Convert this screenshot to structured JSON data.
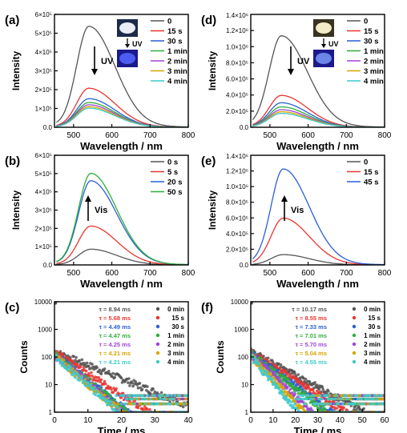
{
  "chart_data": [
    {
      "id": "a",
      "panel_label": "(a)",
      "type": "line",
      "xlabel": "Wavelength / nm",
      "ylabel": "Intensity",
      "xlim": [
        450,
        800
      ],
      "ylim": [
        0,
        600000
      ],
      "ymax_label": "",
      "xticks": [
        500,
        600,
        700,
        800
      ],
      "yticks": [
        [
          0,
          "0.0"
        ],
        [
          100000,
          "1×10⁵"
        ],
        [
          200000,
          "2×10⁵"
        ],
        [
          300000,
          "3×10⁵"
        ],
        [
          400000,
          "4×10⁵"
        ],
        [
          500000,
          "5×10⁵"
        ],
        [
          600000,
          "6×10⁵"
        ]
      ],
      "annotation": "UV",
      "arrow": "down",
      "inset": true,
      "legend": "top-right",
      "peak_x": 540,
      "series": [
        {
          "name": "0",
          "color": "#555555",
          "peak": 530000
        },
        {
          "name": "15 s",
          "color": "#e8352f",
          "peak": 205000
        },
        {
          "name": "30 s",
          "color": "#2a5fd6",
          "peak": 150000
        },
        {
          "name": "1 min",
          "color": "#2fad3b",
          "peak": 130000
        },
        {
          "name": "2 min",
          "color": "#a044d6",
          "peak": 118000
        },
        {
          "name": "3 min",
          "color": "#d8a400",
          "peak": 108000
        },
        {
          "name": "4 min",
          "color": "#3ec9c9",
          "peak": 100000
        }
      ]
    },
    {
      "id": "d",
      "panel_label": "(d)",
      "type": "line",
      "xlabel": "Wavelength / nm",
      "ylabel": "Intensity",
      "xlim": [
        450,
        800
      ],
      "ylim": [
        0,
        1400000
      ],
      "ymax_label": "1.4×10⁶",
      "xticks": [
        500,
        600,
        700,
        800
      ],
      "yticks": [
        [
          0,
          "0.0"
        ],
        [
          200000,
          "2.0×10⁵"
        ],
        [
          400000,
          "4.0×10⁵"
        ],
        [
          600000,
          "6.0×10⁵"
        ],
        [
          800000,
          "8.0×10⁵"
        ],
        [
          1000000,
          "1.0×10⁶"
        ],
        [
          1200000,
          "1.2×10⁶"
        ]
      ],
      "annotation": "UV",
      "arrow": "down",
      "inset": true,
      "legend": "top-right",
      "peak_x": 530,
      "series": [
        {
          "name": "0",
          "color": "#555555",
          "peak": 1120000
        },
        {
          "name": "15 s",
          "color": "#e8352f",
          "peak": 390000
        },
        {
          "name": "30 s",
          "color": "#2a5fd6",
          "peak": 300000
        },
        {
          "name": "1 min",
          "color": "#2fad3b",
          "peak": 250000
        },
        {
          "name": "2 min",
          "color": "#a044d6",
          "peak": 215000
        },
        {
          "name": "3 min",
          "color": "#d8a400",
          "peak": 190000
        },
        {
          "name": "4 min",
          "color": "#3ec9c9",
          "peak": 170000
        }
      ]
    },
    {
      "id": "b",
      "panel_label": "(b)",
      "type": "line",
      "xlabel": "Wavelength / nm",
      "ylabel": "Intensity",
      "xlim": [
        450,
        800
      ],
      "ylim": [
        0,
        600000
      ],
      "ymax_label": "",
      "xticks": [
        500,
        600,
        700,
        800
      ],
      "yticks": [
        [
          0,
          "0.0"
        ],
        [
          100000,
          "1×10⁵"
        ],
        [
          200000,
          "2×10⁵"
        ],
        [
          300000,
          "3×10⁵"
        ],
        [
          400000,
          "4×10⁵"
        ],
        [
          500000,
          "5×10⁵"
        ],
        [
          600000,
          "6×10⁵"
        ]
      ],
      "annotation": "Vis",
      "arrow": "up",
      "inset": false,
      "legend": "top-right",
      "peak_x": 545,
      "series": [
        {
          "name": "0 s",
          "color": "#555555",
          "peak": 85000
        },
        {
          "name": "5 s",
          "color": "#e8352f",
          "peak": 210000
        },
        {
          "name": "20 s",
          "color": "#2a5fd6",
          "peak": 455000
        },
        {
          "name": "50 s",
          "color": "#2fad3b",
          "peak": 495000
        }
      ]
    },
    {
      "id": "e",
      "panel_label": "(e)",
      "type": "line",
      "xlabel": "Wavelength / nm",
      "ylabel": "Intensity",
      "xlim": [
        450,
        800
      ],
      "ylim": [
        0,
        1400000
      ],
      "ymax_label": "1.4×10⁶",
      "xticks": [
        500,
        600,
        700,
        800
      ],
      "yticks": [
        [
          0,
          "0.0"
        ],
        [
          200000,
          "2.0×10⁵"
        ],
        [
          400000,
          "4.0×10⁵"
        ],
        [
          600000,
          "6.0×10⁵"
        ],
        [
          800000,
          "8.0×10⁵"
        ],
        [
          1000000,
          "1.0×10⁶"
        ],
        [
          1200000,
          "1.2×10⁶"
        ]
      ],
      "annotation": "Vis",
      "arrow": "up",
      "inset": false,
      "legend": "top-right",
      "peak_x": 535,
      "series": [
        {
          "name": "0",
          "color": "#555555",
          "peak": 130000
        },
        {
          "name": "15 s",
          "color": "#e8352f",
          "peak": 590000
        },
        {
          "name": "45 s",
          "color": "#2a5fd6",
          "peak": 1210000
        }
      ]
    },
    {
      "id": "c",
      "panel_label": "(c)",
      "type": "scatter",
      "xlabel": "Time / ms",
      "ylabel": "Counts",
      "xlim": [
        0,
        40
      ],
      "ylim": [
        1,
        10000
      ],
      "log_y": true,
      "xticks": [
        0,
        10,
        20,
        30,
        40
      ],
      "yticks": [
        [
          1,
          "1"
        ],
        [
          10,
          "10"
        ],
        [
          100,
          "100"
        ],
        [
          1000,
          "1000"
        ],
        [
          10000,
          "10000"
        ]
      ],
      "legend": "top-right",
      "series": [
        {
          "name": "0 min",
          "tau": "τ = 8.94 ms",
          "tau_ms": 8.94,
          "color": "#555555"
        },
        {
          "name": "15 s",
          "tau": "τ = 5.68 ms",
          "tau_ms": 5.68,
          "color": "#e8352f"
        },
        {
          "name": "30 s",
          "tau": "τ = 4.49 ms",
          "tau_ms": 4.49,
          "color": "#2a5fd6"
        },
        {
          "name": "1 min",
          "tau": "τ = 4.47 ms",
          "tau_ms": 4.47,
          "color": "#2fad3b"
        },
        {
          "name": "2 min",
          "tau": "τ = 4.25 ms",
          "tau_ms": 4.25,
          "color": "#a044d6"
        },
        {
          "name": "3 min",
          "tau": "τ = 4.21 ms",
          "tau_ms": 4.21,
          "color": "#d8a400"
        },
        {
          "name": "4 min",
          "tau": "τ = 4.21 ms",
          "tau_ms": 4.21,
          "color": "#3ec9c9"
        }
      ]
    },
    {
      "id": "f",
      "panel_label": "(f)",
      "type": "scatter",
      "xlabel": "Time / ms",
      "ylabel": "Counts",
      "xlim": [
        0,
        60
      ],
      "ylim": [
        1,
        10000
      ],
      "log_y": true,
      "xticks": [
        0,
        10,
        20,
        30,
        40,
        50,
        60
      ],
      "yticks": [
        [
          1,
          "1"
        ],
        [
          10,
          "10"
        ],
        [
          100,
          "100"
        ],
        [
          1000,
          "1000"
        ],
        [
          10000,
          "10000"
        ]
      ],
      "legend": "top-right",
      "series": [
        {
          "name": "0 min",
          "tau": "τ = 10.17 ms",
          "tau_ms": 10.17,
          "color": "#555555"
        },
        {
          "name": "15 s",
          "tau": "τ = 8.55 ms",
          "tau_ms": 8.55,
          "color": "#e8352f"
        },
        {
          "name": "30 s",
          "tau": "τ = 7.33 ms",
          "tau_ms": 7.33,
          "color": "#2a5fd6"
        },
        {
          "name": "1 min",
          "tau": "τ = 7.01 ms",
          "tau_ms": 7.01,
          "color": "#2fad3b"
        },
        {
          "name": "2 min",
          "tau": "τ = 5.70 ms",
          "tau_ms": 5.7,
          "color": "#a044d6"
        },
        {
          "name": "3 min",
          "tau": "τ = 5.04 ms",
          "tau_ms": 5.04,
          "color": "#d8a400"
        },
        {
          "name": "4 min",
          "tau": "τ = 4.55 ms",
          "tau_ms": 4.55,
          "color": "#3ec9c9"
        }
      ]
    }
  ]
}
